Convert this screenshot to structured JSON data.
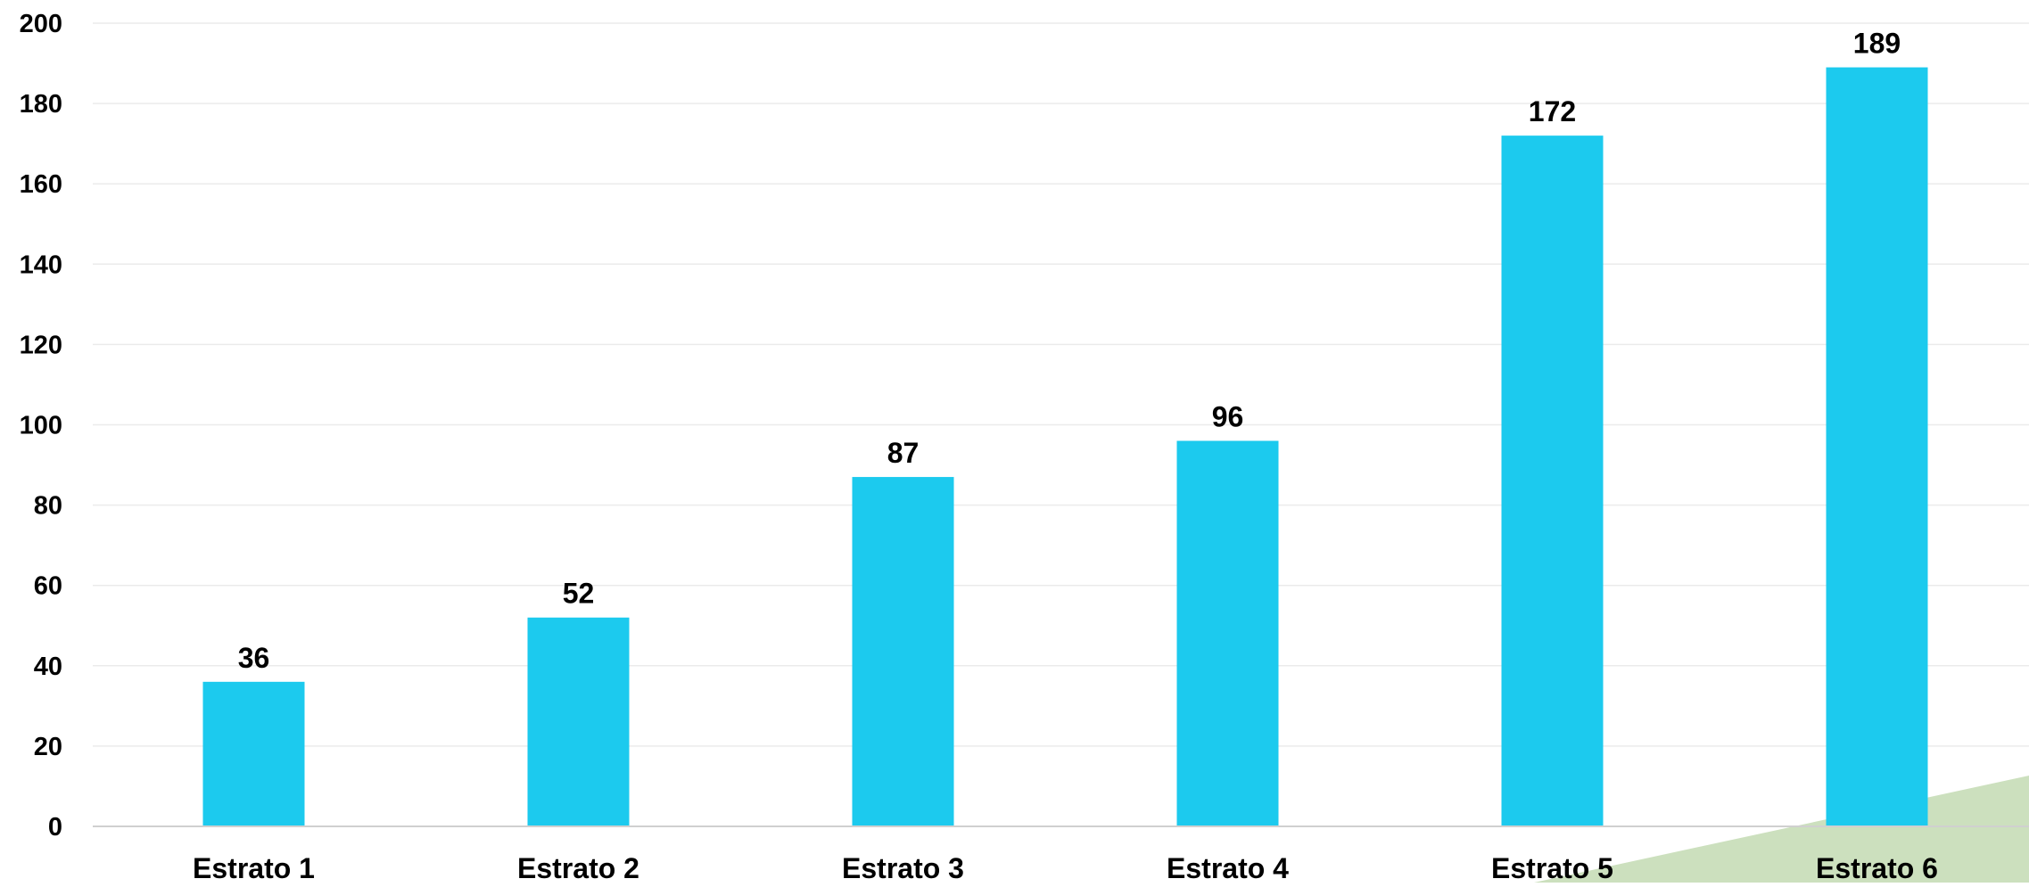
{
  "colors": {
    "bar": "#1CCAEE",
    "grid": "#EBEBEB",
    "axis": "#D0D0D0",
    "decoration": "#CCE0BE",
    "text": "#000000"
  },
  "chart_data": {
    "type": "bar",
    "categories": [
      "Estrato 1",
      "Estrato 2",
      "Estrato 3",
      "Estrato 4",
      "Estrato 5",
      "Estrato 6"
    ],
    "values": [
      36,
      52,
      87,
      96,
      172,
      189
    ],
    "data_labels": [
      "36",
      "52",
      "87",
      "96",
      "172",
      "189"
    ],
    "title": "",
    "xlabel": "",
    "ylabel": "",
    "ylim": [
      0,
      200
    ],
    "yticks": [
      0,
      20,
      40,
      60,
      80,
      100,
      120,
      140,
      160,
      180,
      200
    ],
    "ytick_labels": [
      "0",
      "20",
      "40",
      "60",
      "80",
      "100",
      "120",
      "140",
      "160",
      "180",
      "200"
    ],
    "grid": true,
    "legend": "none"
  }
}
